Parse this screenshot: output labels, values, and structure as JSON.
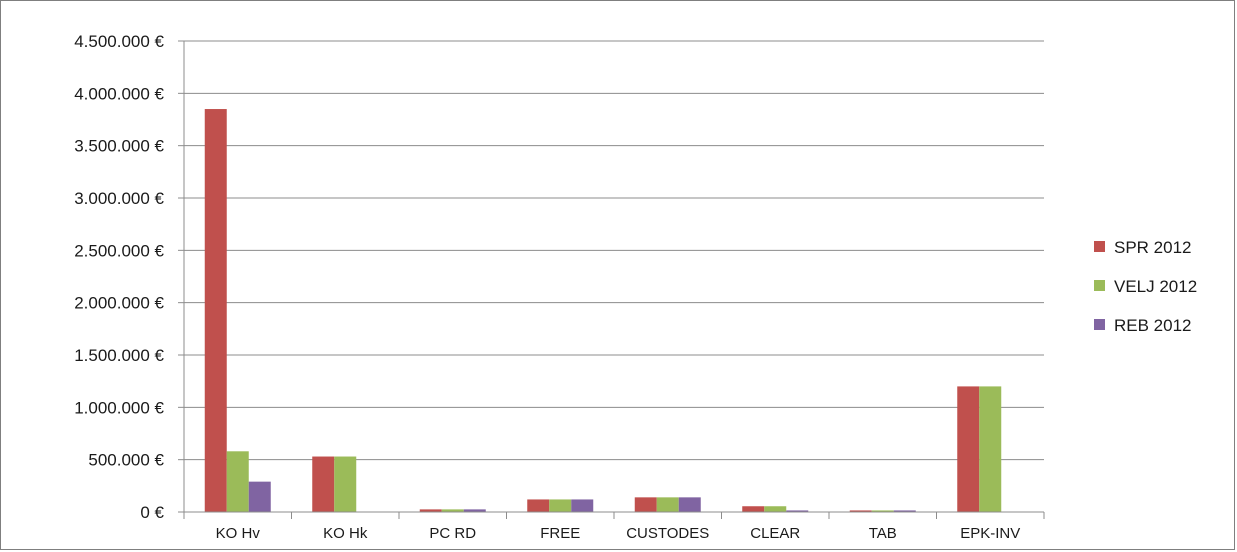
{
  "chart_data": {
    "type": "bar",
    "title": "",
    "xlabel": "",
    "ylabel": "",
    "categories": [
      "KOHv",
      "KOHk",
      "PC RD",
      "FREE",
      "CUSTODES",
      "CLEAR",
      "TAB",
      "EPK-INV"
    ],
    "category_labels": [
      "KO Hv",
      "KO Hk",
      "PC RD",
      "FREE",
      "CUSTODES",
      "CLEAR",
      "TAB",
      "EPK-INV"
    ],
    "series": [
      {
        "name": "SPR 2012",
        "color": "#c0504d",
        "values": [
          3850000,
          530000,
          25000,
          120000,
          140000,
          55000,
          15000,
          1200000
        ]
      },
      {
        "name": "VELJ 2012",
        "color": "#9bbb59",
        "values": [
          580000,
          530000,
          25000,
          120000,
          140000,
          55000,
          15000,
          1200000
        ]
      },
      {
        "name": "REB 2012",
        "color": "#8064a2",
        "values": [
          290000,
          0,
          25000,
          120000,
          140000,
          15000,
          15000,
          0
        ]
      }
    ],
    "ylim": [
      0,
      4500000
    ],
    "yticks": [
      0,
      500000,
      1000000,
      1500000,
      2000000,
      2500000,
      3000000,
      3500000,
      4000000,
      4500000
    ],
    "ytick_labels": [
      "0 €",
      "500.000 €",
      "1.000.000 €",
      "1.500.000 €",
      "2.000.000 €",
      "2.500.000 €",
      "3.000.000 €",
      "3.500.000 €",
      "4.000.000 €",
      "4.500.000 €"
    ],
    "grid": true,
    "legend_position": "right"
  }
}
